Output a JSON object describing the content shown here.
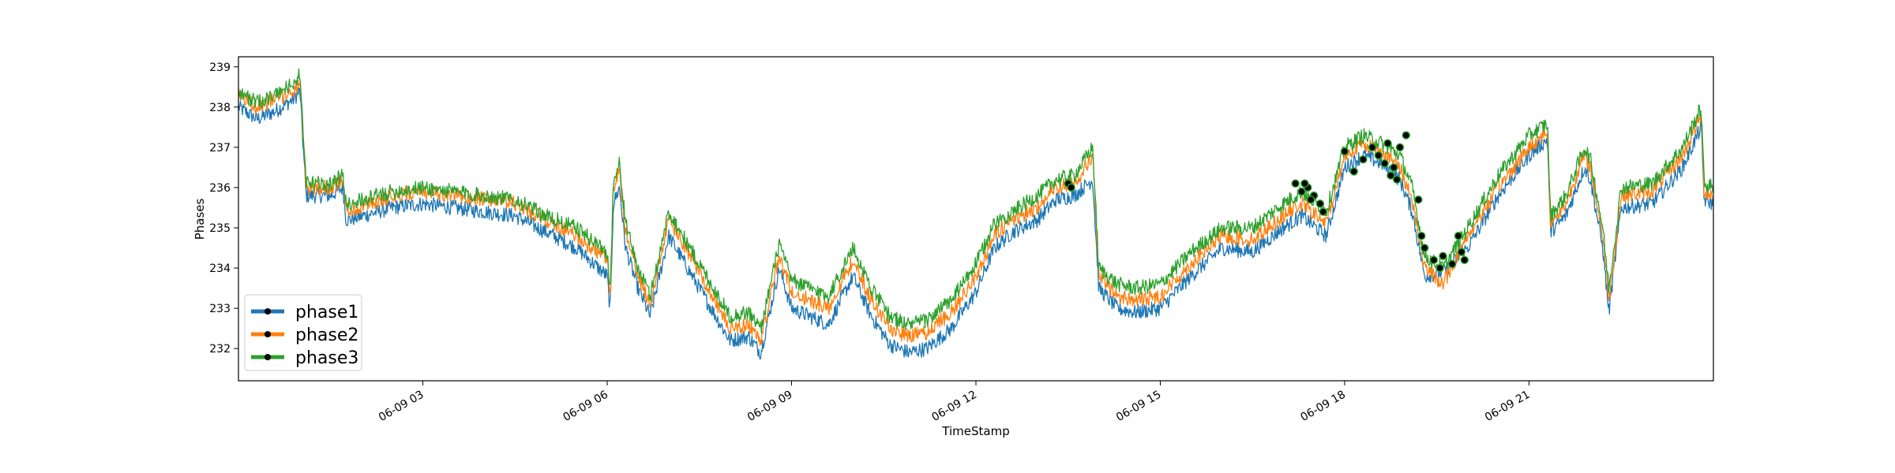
{
  "chart_data": {
    "type": "line",
    "title": "",
    "xlabel": "TimeStamp",
    "ylabel": "Phases",
    "ylim": [
      231.2,
      239.25
    ],
    "xlim": [
      0.0,
      24.0
    ],
    "x_unit": "hours since 06-09 00:00",
    "x_ticks": [
      {
        "label": "06-09 03",
        "value": 3
      },
      {
        "label": "06-09 06",
        "value": 6
      },
      {
        "label": "06-09 09",
        "value": 9
      },
      {
        "label": "06-09 12",
        "value": 12
      },
      {
        "label": "06-09 15",
        "value": 15
      },
      {
        "label": "06-09 18",
        "value": 18
      },
      {
        "label": "06-09 21",
        "value": 21
      }
    ],
    "y_ticks": [
      232,
      233,
      234,
      235,
      236,
      237,
      238,
      239
    ],
    "grid": false,
    "legend": {
      "position": "lower-left",
      "entries": [
        "phase1",
        "phase2",
        "phase3"
      ]
    },
    "colors": {
      "phase1": "#1f77b4",
      "phase2": "#ff7f0e",
      "phase3": "#2ca02c",
      "anomaly_marker": "#000000"
    },
    "series": [
      {
        "name": "phase1",
        "x": [
          0,
          0.3,
          0.6,
          0.9,
          1.0,
          1.1,
          1.5,
          1.7,
          1.75,
          1.8,
          2.5,
          3.0,
          3.5,
          4.0,
          4.5,
          5.0,
          5.5,
          6.0,
          6.05,
          6.1,
          6.2,
          6.3,
          6.5,
          6.7,
          7.0,
          7.5,
          8.0,
          8.3,
          8.5,
          8.8,
          9.0,
          9.3,
          9.6,
          10.0,
          10.3,
          10.6,
          10.9,
          11.2,
          11.6,
          12.0,
          12.3,
          12.6,
          13.0,
          13.3,
          13.6,
          13.9,
          14.0,
          14.3,
          14.6,
          15.0,
          15.5,
          16.0,
          16.5,
          17.0,
          17.3,
          17.7,
          18.0,
          18.3,
          18.6,
          18.9,
          19.1,
          19.3,
          19.6,
          20.0,
          20.5,
          21.0,
          21.3,
          21.35,
          21.6,
          21.9,
          22.0,
          22.2,
          22.3,
          22.5,
          23.0,
          23.5,
          23.8,
          23.85,
          24.0
        ],
        "y": [
          238.0,
          237.7,
          237.9,
          238.2,
          238.4,
          235.8,
          235.8,
          236.0,
          235.2,
          235.2,
          235.5,
          235.6,
          235.5,
          235.4,
          235.3,
          234.9,
          234.5,
          233.8,
          232.9,
          235.6,
          236.0,
          234.5,
          233.5,
          232.8,
          234.8,
          233.5,
          232.2,
          232.3,
          231.9,
          234.0,
          233.0,
          232.8,
          232.6,
          233.8,
          232.8,
          232.1,
          231.9,
          232.0,
          232.5,
          233.4,
          234.5,
          234.9,
          235.2,
          235.7,
          235.8,
          236.2,
          233.5,
          233.0,
          232.9,
          233.0,
          233.8,
          234.5,
          234.4,
          235.0,
          235.3,
          234.8,
          236.5,
          236.8,
          236.6,
          236.2,
          235.4,
          233.8,
          233.9,
          234.5,
          235.8,
          236.8,
          237.2,
          234.9,
          235.3,
          236.5,
          236.2,
          234.5,
          232.9,
          235.5,
          235.6,
          236.5,
          237.5,
          235.7,
          235.6
        ]
      },
      {
        "name": "phase2",
        "x": [
          0,
          0.3,
          0.6,
          0.9,
          1.0,
          1.1,
          1.5,
          1.7,
          1.75,
          1.8,
          2.5,
          3.0,
          3.5,
          4.0,
          4.5,
          5.0,
          5.5,
          6.0,
          6.05,
          6.1,
          6.2,
          6.3,
          6.5,
          6.7,
          7.0,
          7.5,
          8.0,
          8.3,
          8.5,
          8.8,
          9.0,
          9.3,
          9.6,
          10.0,
          10.3,
          10.6,
          10.9,
          11.2,
          11.6,
          12.0,
          12.3,
          12.6,
          13.0,
          13.3,
          13.6,
          13.9,
          14.0,
          14.3,
          14.6,
          15.0,
          15.5,
          16.0,
          16.5,
          17.0,
          17.3,
          17.7,
          18.0,
          18.3,
          18.6,
          18.9,
          19.1,
          19.3,
          19.6,
          20.0,
          20.5,
          21.0,
          21.3,
          21.35,
          21.6,
          21.9,
          22.0,
          22.2,
          22.3,
          22.5,
          23.0,
          23.5,
          23.8,
          23.85,
          24.0
        ],
        "y": [
          238.3,
          238.0,
          238.2,
          238.4,
          238.6,
          236.0,
          236.0,
          236.2,
          235.5,
          235.4,
          235.8,
          235.9,
          235.8,
          235.7,
          235.6,
          235.2,
          234.8,
          234.2,
          233.2,
          236.0,
          236.4,
          234.9,
          233.8,
          233.1,
          235.2,
          233.9,
          232.5,
          232.6,
          232.2,
          234.3,
          233.4,
          233.2,
          233.0,
          234.2,
          233.2,
          232.5,
          232.3,
          232.4,
          232.9,
          233.8,
          234.8,
          235.2,
          235.5,
          236.0,
          236.1,
          236.8,
          233.8,
          233.3,
          233.2,
          233.3,
          234.1,
          234.8,
          234.7,
          235.3,
          235.6,
          235.1,
          236.8,
          237.1,
          236.9,
          236.5,
          235.7,
          234.0,
          233.6,
          234.8,
          236.0,
          237.0,
          237.4,
          235.1,
          235.6,
          236.8,
          236.5,
          234.8,
          233.2,
          235.8,
          235.9,
          236.8,
          237.8,
          235.9,
          235.8
        ]
      },
      {
        "name": "phase3",
        "x": [
          0,
          0.3,
          0.6,
          0.9,
          1.0,
          1.1,
          1.5,
          1.7,
          1.75,
          1.8,
          2.5,
          3.0,
          3.5,
          4.0,
          4.5,
          5.0,
          5.5,
          6.0,
          6.05,
          6.1,
          6.2,
          6.3,
          6.5,
          6.7,
          7.0,
          7.5,
          8.0,
          8.3,
          8.5,
          8.8,
          9.0,
          9.3,
          9.6,
          10.0,
          10.3,
          10.6,
          10.9,
          11.2,
          11.6,
          12.0,
          12.3,
          12.6,
          13.0,
          13.3,
          13.6,
          13.9,
          14.0,
          14.3,
          14.6,
          15.0,
          15.5,
          16.0,
          16.5,
          17.0,
          17.3,
          17.7,
          18.0,
          18.3,
          18.6,
          18.9,
          19.1,
          19.3,
          19.6,
          20.0,
          20.5,
          21.0,
          21.3,
          21.35,
          21.6,
          21.9,
          22.0,
          22.2,
          22.3,
          22.5,
          23.0,
          23.5,
          23.8,
          23.85,
          24.0
        ],
        "y": [
          238.4,
          238.1,
          238.3,
          238.6,
          238.8,
          236.1,
          236.1,
          236.3,
          235.6,
          235.6,
          235.9,
          236.0,
          235.9,
          235.8,
          235.7,
          235.3,
          235.0,
          234.4,
          233.4,
          236.1,
          236.6,
          235.1,
          234.0,
          233.3,
          235.4,
          234.1,
          232.8,
          232.9,
          232.5,
          234.6,
          233.7,
          233.5,
          233.3,
          234.5,
          233.5,
          232.8,
          232.6,
          232.7,
          233.2,
          234.1,
          235.1,
          235.4,
          235.8,
          236.2,
          236.3,
          237.0,
          234.0,
          233.6,
          233.5,
          233.6,
          234.4,
          235.0,
          235.0,
          235.6,
          235.9,
          235.4,
          237.0,
          237.3,
          237.1,
          236.8,
          236.0,
          234.3,
          234.0,
          235.0,
          236.3,
          237.3,
          237.6,
          235.3,
          235.8,
          237.0,
          236.7,
          235.0,
          233.5,
          236.0,
          236.1,
          237.0,
          238.0,
          236.1,
          236.0
        ]
      }
    ],
    "anomalies": [
      {
        "x": 13.5,
        "y": 236.1
      },
      {
        "x": 13.55,
        "y": 236.0
      },
      {
        "x": 17.2,
        "y": 236.1
      },
      {
        "x": 17.3,
        "y": 235.9
      },
      {
        "x": 17.4,
        "y": 236.0
      },
      {
        "x": 17.5,
        "y": 235.8
      },
      {
        "x": 17.6,
        "y": 235.6
      },
      {
        "x": 17.65,
        "y": 235.4
      },
      {
        "x": 17.45,
        "y": 235.7
      },
      {
        "x": 17.35,
        "y": 236.1
      },
      {
        "x": 18.0,
        "y": 236.9
      },
      {
        "x": 18.15,
        "y": 236.4
      },
      {
        "x": 18.3,
        "y": 236.7
      },
      {
        "x": 18.45,
        "y": 237.0
      },
      {
        "x": 18.55,
        "y": 236.8
      },
      {
        "x": 18.65,
        "y": 236.6
      },
      {
        "x": 18.75,
        "y": 236.3
      },
      {
        "x": 18.8,
        "y": 236.5
      },
      {
        "x": 18.9,
        "y": 237.0
      },
      {
        "x": 19.0,
        "y": 237.3
      },
      {
        "x": 18.7,
        "y": 237.1
      },
      {
        "x": 18.85,
        "y": 236.2
      },
      {
        "x": 19.2,
        "y": 235.7
      },
      {
        "x": 19.25,
        "y": 234.8
      },
      {
        "x": 19.3,
        "y": 234.5
      },
      {
        "x": 19.45,
        "y": 234.2
      },
      {
        "x": 19.55,
        "y": 234.0
      },
      {
        "x": 19.6,
        "y": 234.3
      },
      {
        "x": 19.75,
        "y": 234.1
      },
      {
        "x": 19.85,
        "y": 234.8
      },
      {
        "x": 19.9,
        "y": 234.4
      },
      {
        "x": 19.95,
        "y": 234.2
      }
    ]
  }
}
